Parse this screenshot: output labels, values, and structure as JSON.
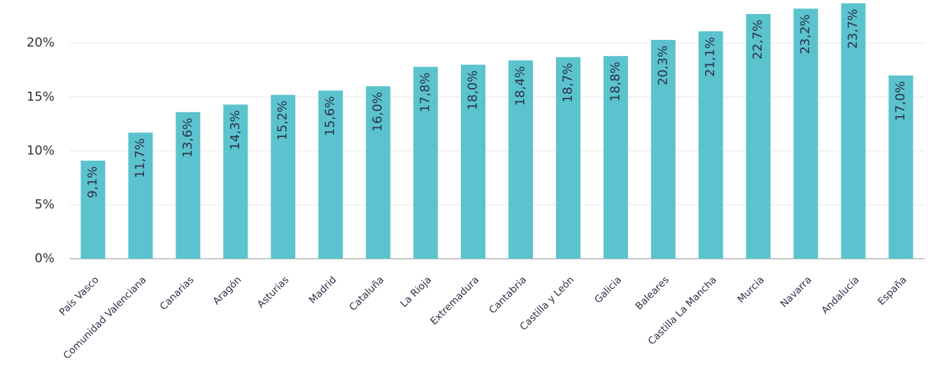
{
  "chart_data": {
    "type": "bar",
    "categories": [
      "País Vasco",
      "Comunidad Valenciana",
      "Canarias",
      "Aragón",
      "Asturias",
      "Madrid",
      "Cataluña",
      "La Rioja",
      "Extremadura",
      "Cantabria",
      "Castilla y León",
      "Galicia",
      "Baleares",
      "Castilla La Mancha",
      "Murcia",
      "Navarra",
      "Andalucía",
      "España"
    ],
    "values": [
      9.1,
      11.7,
      13.6,
      14.3,
      15.2,
      15.6,
      16.0,
      17.8,
      18.0,
      18.4,
      18.7,
      18.8,
      20.3,
      21.1,
      22.7,
      23.2,
      23.7,
      17.0
    ],
    "value_labels": [
      "9,1%",
      "11,7%",
      "13,6%",
      "14,3%",
      "15,2%",
      "15,6%",
      "16,0%",
      "17,8%",
      "18,0%",
      "18,4%",
      "18,7%",
      "18,8%",
      "20,3%",
      "21,1%",
      "22,7%",
      "23,2%",
      "23,7%",
      "17,0%"
    ],
    "color": "#5bc3ce",
    "ylim": [
      0,
      24
    ],
    "yticks": [
      {
        "value": 0,
        "label": "0%"
      },
      {
        "value": 5,
        "label": "5%"
      },
      {
        "value": 10,
        "label": "10%"
      },
      {
        "value": 15,
        "label": "15%"
      },
      {
        "value": 20,
        "label": "20%"
      }
    ],
    "grid": true
  }
}
